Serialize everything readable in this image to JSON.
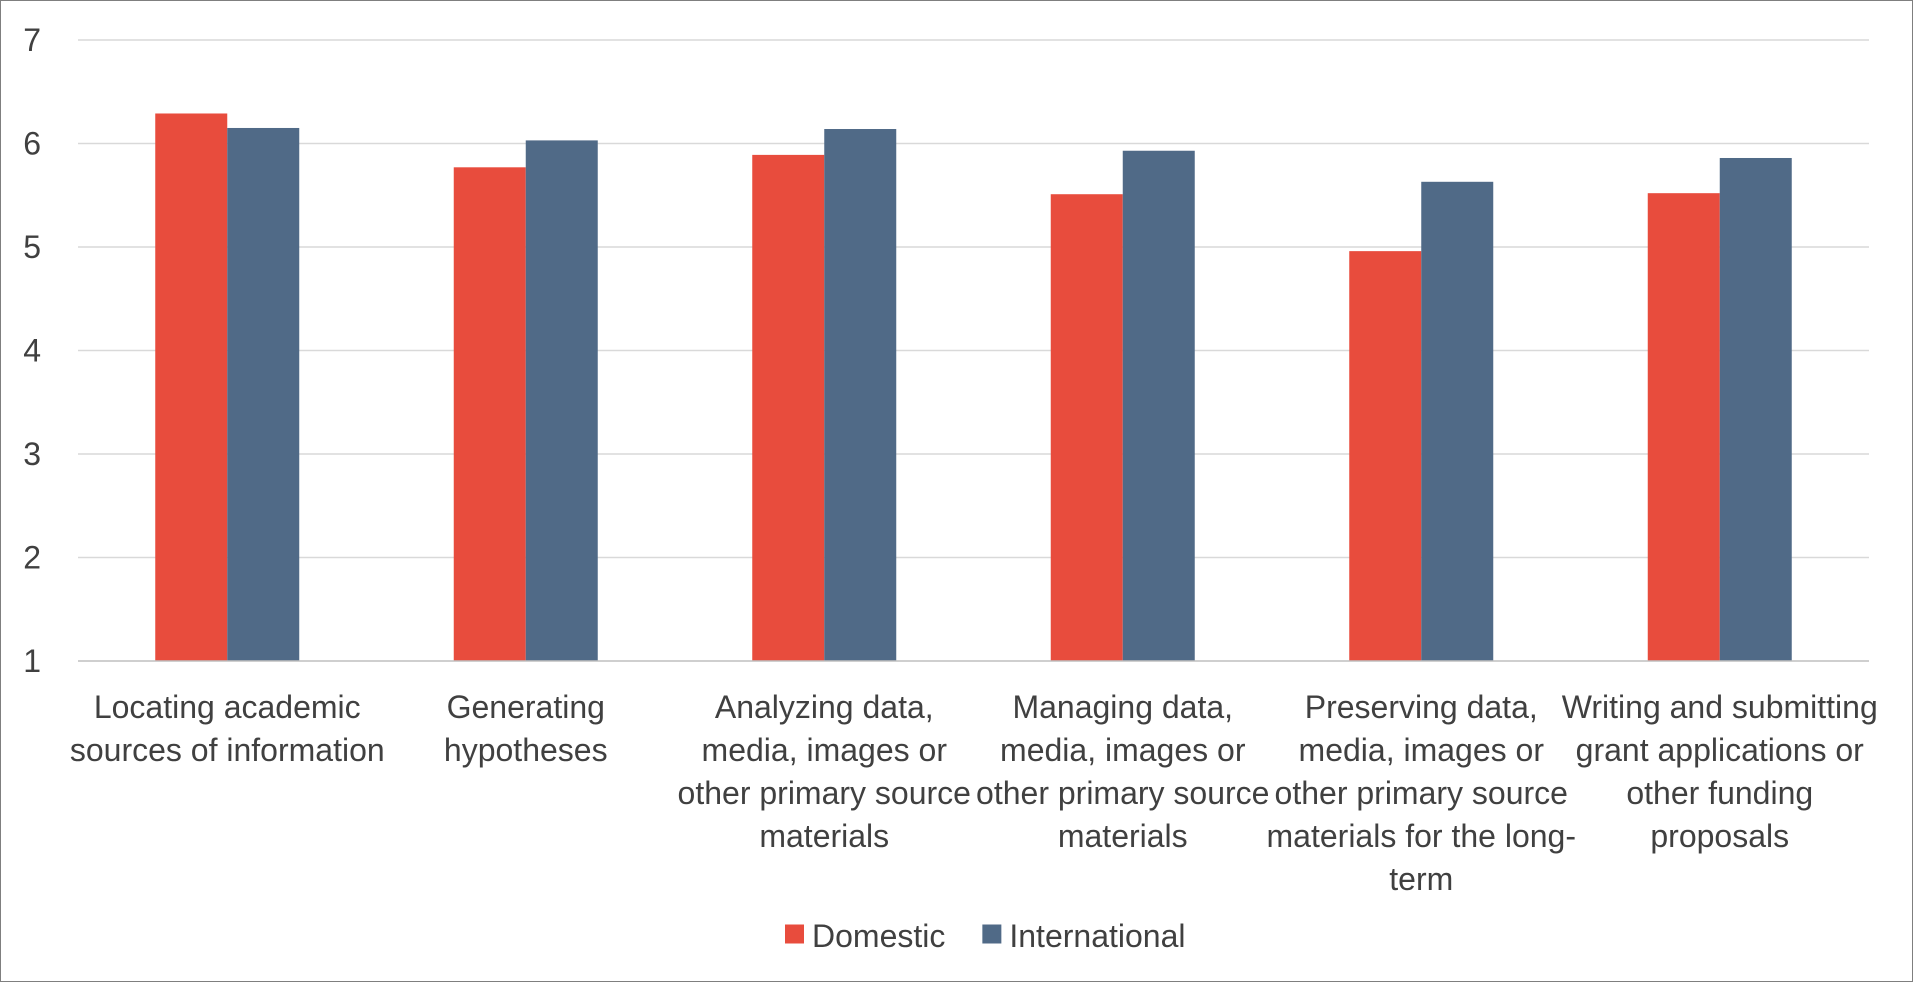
{
  "chart_data": {
    "type": "bar",
    "title": "",
    "xlabel": "",
    "ylabel": "",
    "ylim": [
      1,
      7
    ],
    "yticks": [
      1,
      2,
      3,
      4,
      5,
      6,
      7
    ],
    "grid": true,
    "legend_position": "bottom",
    "categories": [
      [
        "Locating academic",
        "sources of information"
      ],
      [
        "Generating",
        "hypotheses"
      ],
      [
        "Analyzing data,",
        "media, images or",
        "other primary source",
        "materials"
      ],
      [
        "Managing data,",
        "media, images or",
        "other primary source",
        "materials"
      ],
      [
        "Preserving data,",
        "media, images or",
        "other primary source",
        "materials for the long-",
        "term"
      ],
      [
        "Writing and submitting",
        "grant applications or",
        "other funding",
        "proposals"
      ]
    ],
    "series": [
      {
        "name": "Domestic",
        "color": "#e84c3d",
        "values": [
          6.29,
          5.77,
          5.89,
          5.51,
          4.96,
          5.52
        ]
      },
      {
        "name": "International",
        "color": "#506a87",
        "values": [
          6.15,
          6.03,
          6.14,
          5.93,
          5.63,
          5.86
        ]
      }
    ]
  }
}
